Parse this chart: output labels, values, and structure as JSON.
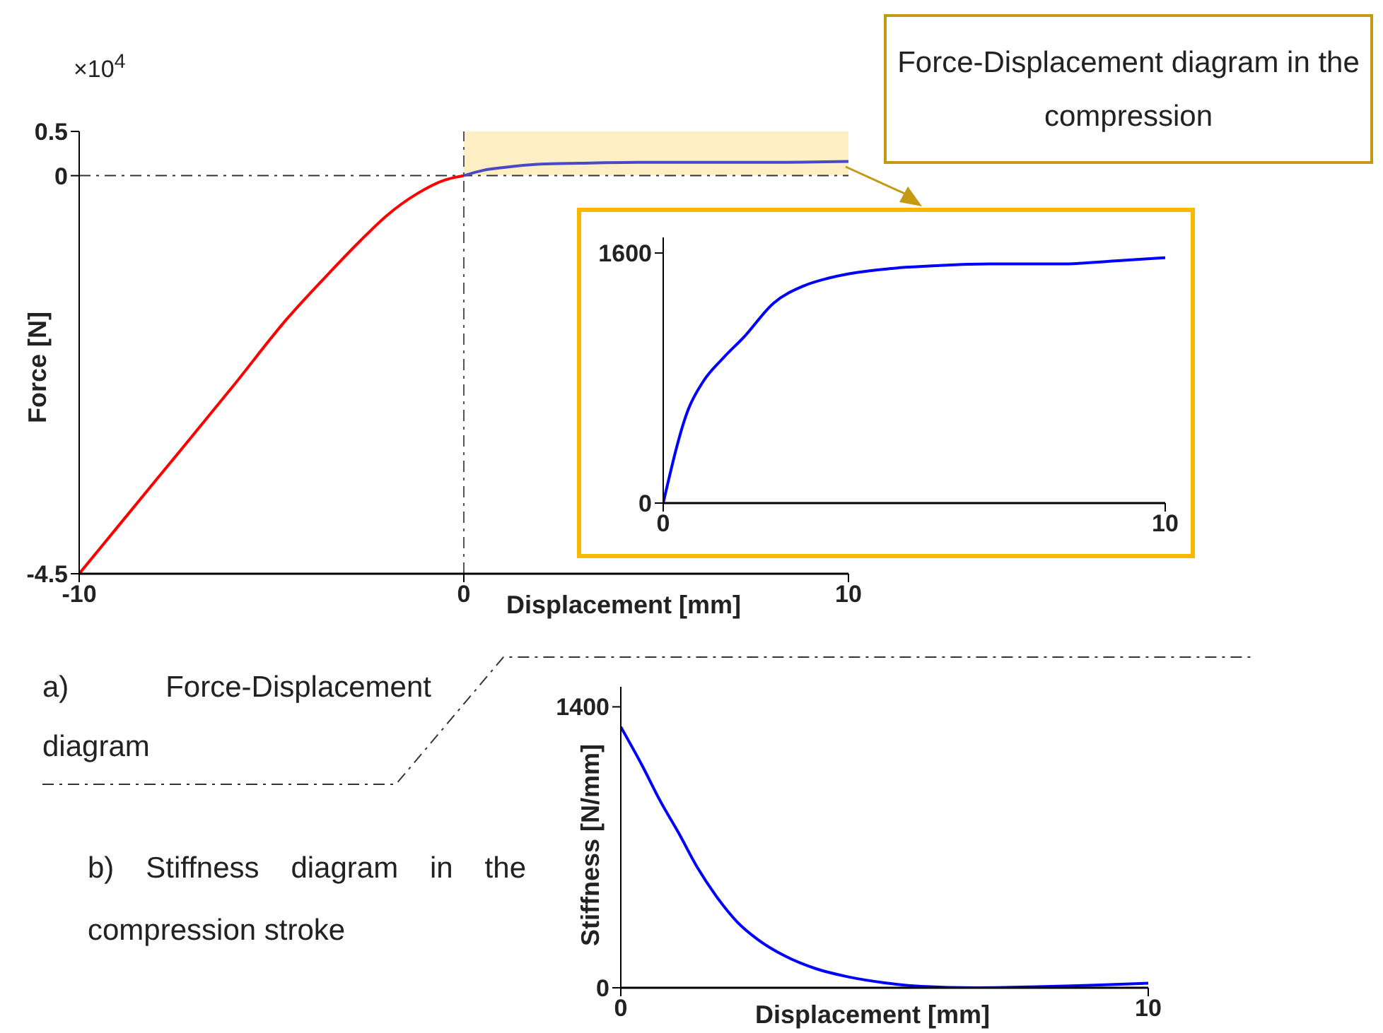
{
  "chart_data": [
    {
      "type": "line",
      "xlabel": "Displacement [mm]",
      "ylabel": "Force [N]",
      "xlim": [
        -10,
        10
      ],
      "xticks": [
        -10,
        0,
        10
      ],
      "ylim": [
        -4.5,
        0.5
      ],
      "yticks": [
        -4.5,
        0,
        0.5
      ],
      "series": [
        {
          "color": "#ff0000",
          "x": [
            -10,
            -8,
            -6,
            -4.6,
            -3.5,
            -2.7,
            -2,
            -1.2,
            -0.5,
            0
          ],
          "values": [
            -4.5,
            -3.44,
            -2.38,
            -1.62,
            -1.1,
            -0.74,
            -0.45,
            -0.2,
            -0.05,
            0
          ]
        },
        {
          "color": "#4848c8",
          "x": [
            0,
            0.5,
            1,
            2,
            3,
            4.5,
            6.5,
            8,
            10
          ],
          "values": [
            0,
            0.06,
            0.09,
            0.13,
            0.14,
            0.15,
            0.15,
            0.15,
            0.16
          ]
        }
      ],
      "ref_lines": [
        {
          "axis": "y",
          "value": 0,
          "color": "#333333",
          "line_style": "dashdot"
        },
        {
          "axis": "x",
          "value": 0,
          "color": "#555555",
          "line_style": "dashdot"
        }
      ],
      "bands": [
        {
          "axis": "x",
          "from": 0,
          "to": 10,
          "color": "#fdeec4"
        }
      ],
      "annotations": [
        "×10$^{4}$",
        "a)      Force-Displacement diagram"
      ]
    },
    {
      "type": "line",
      "title": "Force-Displacement diagram in the compression",
      "xlim": [
        0,
        10
      ],
      "xticks": [
        0,
        10
      ],
      "ylim": [
        0,
        1700
      ],
      "yticks": [
        0,
        1600
      ],
      "series": [
        {
          "color": "#0000ff",
          "x": [
            0,
            0.5,
            0.8,
            1.2,
            1.6,
            2.2,
            2.8,
            3.3,
            4.5,
            5.5,
            6.5,
            7.9,
            9,
            10
          ],
          "values": [
            0,
            600,
            780,
            930,
            1060,
            1280,
            1390,
            1440,
            1500,
            1520,
            1530,
            1530,
            1550,
            1570
          ]
        }
      ]
    },
    {
      "type": "line",
      "xlabel": "Displacement [mm]",
      "ylabel": "Stiffness [N/mm]",
      "xlim": [
        0,
        10
      ],
      "xticks": [
        0,
        10
      ],
      "ylim": [
        0,
        1500
      ],
      "yticks": [
        0,
        1400
      ],
      "series": [
        {
          "color": "#0000ff",
          "x": [
            0,
            0.4,
            0.75,
            1.1,
            1.45,
            1.8,
            2.2,
            2.6,
            3.1,
            3.7,
            4.3,
            5,
            5.7,
            6.7,
            7.9,
            9,
            10
          ],
          "values": [
            1300,
            1110,
            930,
            770,
            600,
            460,
            330,
            240,
            160,
            95,
            55,
            25,
            7,
            0,
            5,
            13,
            23
          ]
        }
      ],
      "annotations": [
        "b) Stiffness diagram in the compression stroke"
      ]
    }
  ]
}
